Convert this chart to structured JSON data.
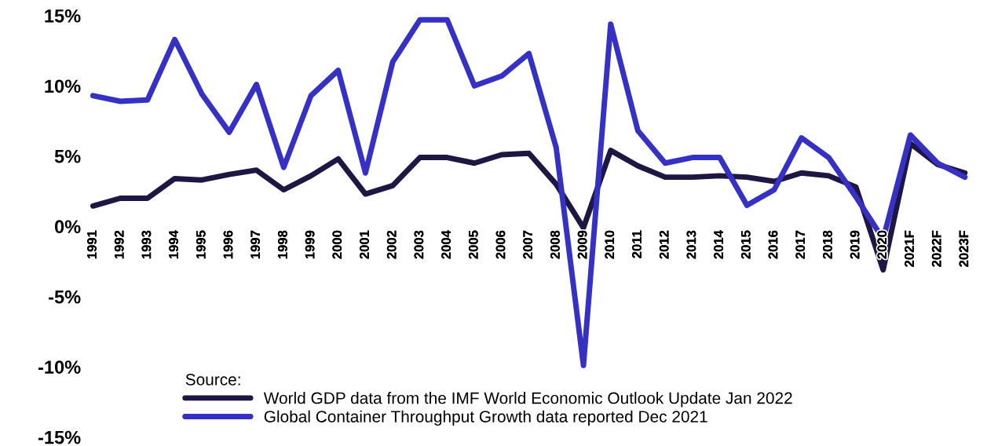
{
  "chart_data": {
    "type": "line",
    "categories": [
      "1991",
      "1992",
      "1993",
      "1994",
      "1995",
      "1996",
      "1997",
      "1998",
      "1999",
      "2000",
      "2001",
      "2002",
      "2003",
      "2004",
      "2005",
      "2006",
      "2007",
      "2008",
      "2009",
      "2010",
      "2011",
      "2012",
      "2013",
      "2014",
      "2015",
      "2016",
      "2017",
      "2018",
      "2019",
      "2020",
      "2021F",
      "2022F",
      "2023F"
    ],
    "series": [
      {
        "name": "World GDP data from the IMF World Economic Outlook Update Jan 2022",
        "color": "#1e1744",
        "values": [
          1.45,
          2.0,
          2.0,
          3.4,
          3.3,
          3.7,
          4.0,
          2.6,
          3.6,
          4.8,
          2.3,
          2.9,
          4.9,
          4.9,
          4.5,
          5.1,
          5.2,
          3.0,
          -0.1,
          5.4,
          4.3,
          3.5,
          3.5,
          3.6,
          3.5,
          3.2,
          3.8,
          3.6,
          2.8,
          -3.1,
          5.9,
          4.4,
          3.8
        ]
      },
      {
        "name": "Global Container Throughput Growth data reported Dec 2021",
        "color": "#3431c4",
        "values": [
          9.3,
          8.9,
          9.0,
          13.3,
          9.4,
          6.7,
          10.1,
          4.2,
          9.3,
          11.1,
          3.8,
          11.7,
          14.7,
          14.7,
          10.0,
          10.7,
          12.3,
          5.6,
          -9.9,
          14.4,
          6.8,
          4.5,
          4.9,
          4.9,
          1.5,
          2.6,
          6.3,
          4.9,
          2.1,
          -0.9,
          6.5,
          4.5,
          3.5
        ]
      }
    ],
    "ylim": [
      -15,
      15
    ],
    "yticks": [
      {
        "value": -15,
        "label": "-15%"
      },
      {
        "value": -10,
        "label": "-10%"
      },
      {
        "value": -5,
        "label": "-5%"
      },
      {
        "value": 0,
        "label": "0%"
      },
      {
        "value": 5,
        "label": "5%"
      },
      {
        "value": 10,
        "label": "10%"
      },
      {
        "value": 15,
        "label": "15%"
      }
    ],
    "legend_title": "Source:",
    "legend": "bottom",
    "grid": false,
    "marker": "none",
    "line_style": "solid"
  }
}
